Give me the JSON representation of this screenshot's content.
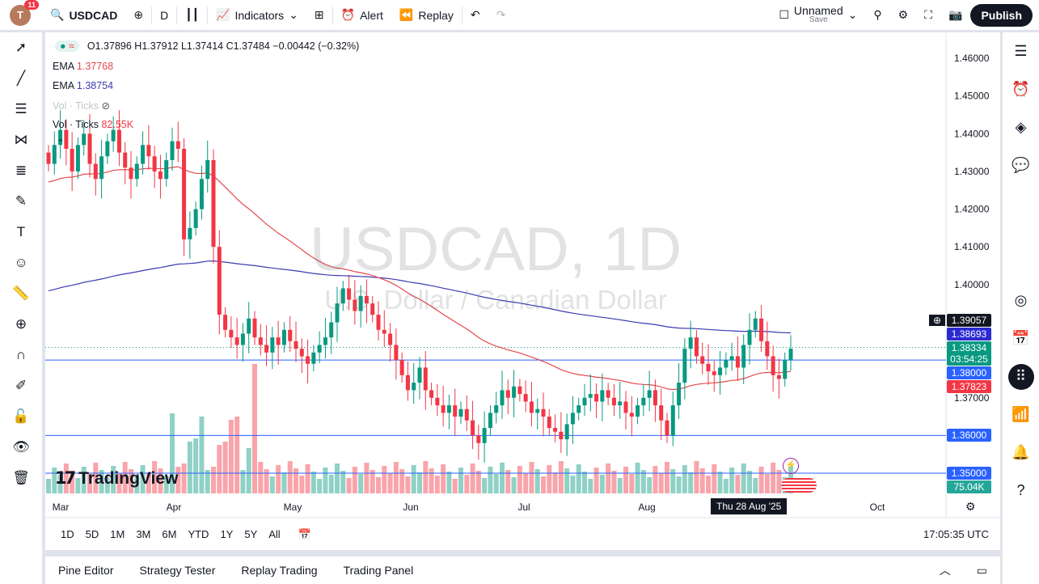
{
  "header": {
    "avatar_letter": "T",
    "notifications": "11",
    "symbol": "USDCAD",
    "interval": "D",
    "indicators": "Indicators",
    "alert": "Alert",
    "replay": "Replay",
    "layout_name": "Unnamed",
    "layout_sub": "Save",
    "publish": "Publish"
  },
  "legend": {
    "ohlc": "O1.37896 H1.37912 L1.37414 C1.37484 −0.00442 (−0.32%)",
    "ema1_label": "EMA",
    "ema1_value": "1.37768",
    "ema2_label": "EMA",
    "ema2_value": "1.38754",
    "vol_hidden": "Vol · Ticks",
    "vol_label": "Vol · Ticks",
    "vol_value": "82.55K"
  },
  "watermark": {
    "title": "USDCAD, 1D",
    "subtitle": "U.S. Dollar / Canadian Dollar"
  },
  "logo": "TradingView",
  "colors": {
    "up": "#089981",
    "down": "#f23645",
    "ema_fast": "#e5484d",
    "ema_slow": "#3b3bb3",
    "hline": "#2962ff"
  },
  "price_axis": {
    "ticks": [
      "1.46000",
      "1.45000",
      "1.44000",
      "1.43000",
      "1.42000",
      "1.41000",
      "1.40000",
      "1.37000"
    ],
    "tick_values": [
      1.46,
      1.45,
      1.44,
      1.43,
      1.42,
      1.41,
      1.4,
      1.37
    ],
    "labels": [
      {
        "text": "1.39057",
        "price": 1.39057,
        "bg": "#131722"
      },
      {
        "text": "1.38693",
        "price": 1.38693,
        "bg": "#2b2bd1"
      },
      {
        "text": "1.38334",
        "sub": "03:54:25",
        "price": 1.38334,
        "bg": "#089981"
      },
      {
        "text": "1.38000",
        "price": 1.38,
        "bg": "#2962ff"
      },
      {
        "text": "1.37823",
        "price": 1.37823,
        "bg": "#f23645"
      },
      {
        "text": "1.36000",
        "price": 1.36,
        "bg": "#2962ff"
      },
      {
        "text": "1.35000",
        "price": 1.35,
        "bg": "#2962ff"
      },
      {
        "text": "75.04K",
        "price": 1.3465,
        "bg": "#26a69a"
      }
    ]
  },
  "time_axis": {
    "labels": [
      "Mar",
      "Apr",
      "May",
      "Jun",
      "Jul",
      "Aug",
      "Oct"
    ],
    "crosshair": "Thu 28 Aug '25"
  },
  "ranges": [
    "1D",
    "5D",
    "1M",
    "3M",
    "6M",
    "YTD",
    "1Y",
    "5Y",
    "All"
  ],
  "clock": "17:05:35 UTC",
  "bottom_tabs": [
    "Pine Editor",
    "Strategy Tester",
    "Replay Trading",
    "Trading Panel"
  ],
  "chart_data": {
    "type": "candlestick",
    "hlines": [
      1.38,
      1.36,
      1.35
    ],
    "closes": [
      1.432,
      1.437,
      1.441,
      1.436,
      1.43,
      1.437,
      1.44,
      1.432,
      1.428,
      1.434,
      1.438,
      1.441,
      1.435,
      1.431,
      1.428,
      1.432,
      1.437,
      1.434,
      1.43,
      1.428,
      1.433,
      1.438,
      1.436,
      1.412,
      1.415,
      1.42,
      1.428,
      1.433,
      1.41,
      1.392,
      1.388,
      1.386,
      1.384,
      1.387,
      1.391,
      1.386,
      1.384,
      1.382,
      1.386,
      1.384,
      1.388,
      1.385,
      1.383,
      1.381,
      1.379,
      1.382,
      1.384,
      1.386,
      1.39,
      1.395,
      1.399,
      1.396,
      1.393,
      1.397,
      1.395,
      1.392,
      1.388,
      1.387,
      1.384,
      1.38,
      1.376,
      1.372,
      1.374,
      1.378,
      1.372,
      1.37,
      1.368,
      1.366,
      1.368,
      1.365,
      1.367,
      1.364,
      1.36,
      1.358,
      1.362,
      1.366,
      1.368,
      1.372,
      1.37,
      1.373,
      1.371,
      1.369,
      1.366,
      1.367,
      1.365,
      1.362,
      1.361,
      1.359,
      1.363,
      1.366,
      1.368,
      1.37,
      1.371,
      1.369,
      1.372,
      1.37,
      1.368,
      1.369,
      1.366,
      1.365,
      1.368,
      1.37,
      1.372,
      1.368,
      1.364,
      1.36,
      1.368,
      1.374,
      1.383,
      1.386,
      1.381,
      1.379,
      1.377,
      1.376,
      1.378,
      1.38,
      1.381,
      1.378,
      1.384,
      1.388,
      1.391,
      1.385,
      1.381,
      1.376,
      1.375,
      1.38,
      1.383
    ]
  }
}
